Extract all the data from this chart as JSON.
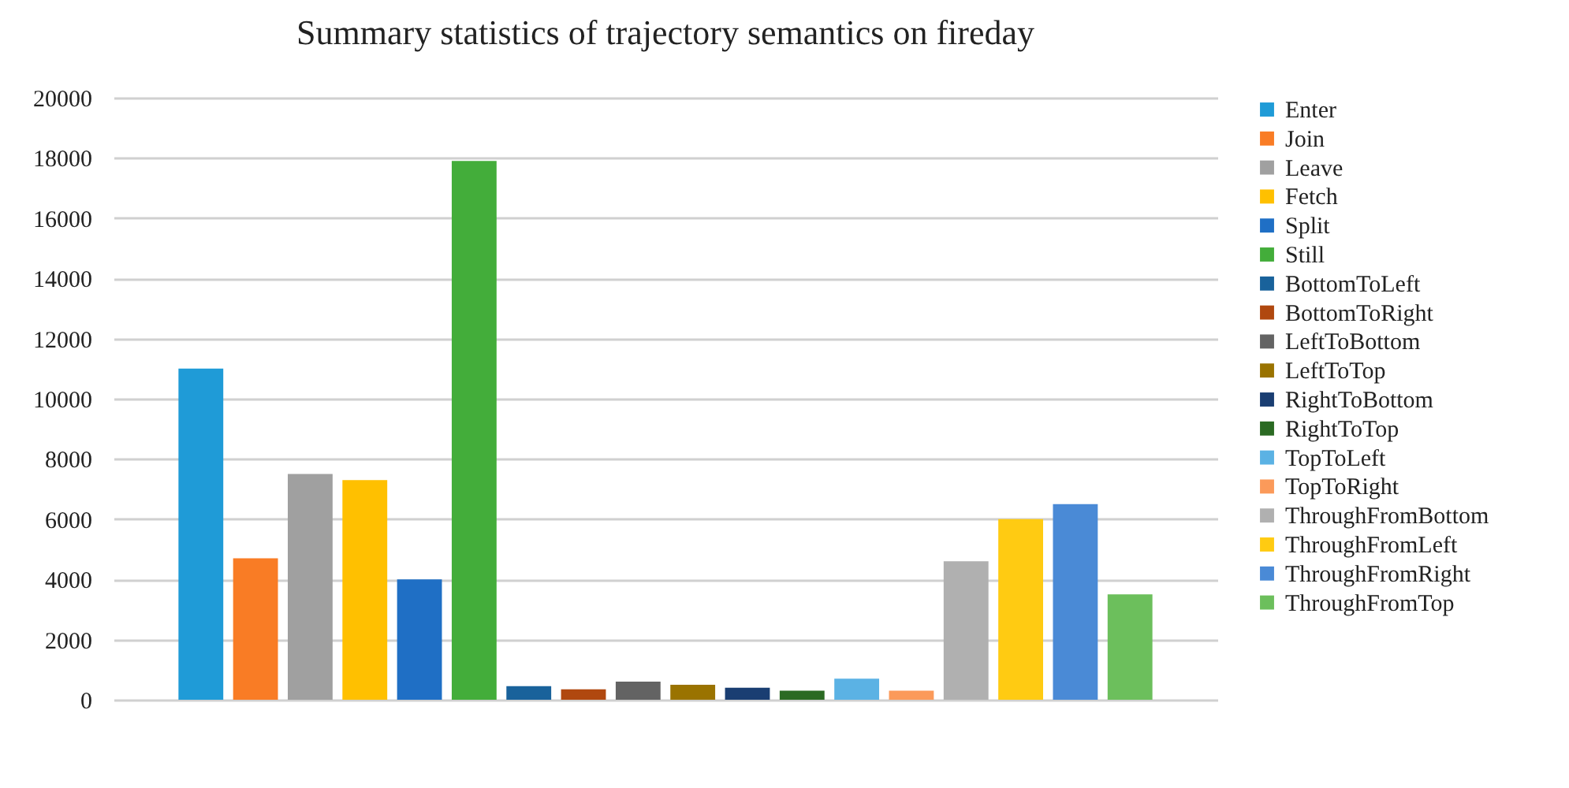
{
  "chart_data": {
    "type": "bar",
    "title": "Summary  statistics of trajectory  semantics on fireday",
    "categories": [
      null
    ],
    "series": [
      {
        "name": "Enter",
        "color": "#1f9bd7",
        "values": [
          11000
        ]
      },
      {
        "name": "Join",
        "color": "#f97c25",
        "values": [
          4700
        ]
      },
      {
        "name": "Leave",
        "color": "#a0a0a0",
        "values": [
          7500
        ]
      },
      {
        "name": "Fetch",
        "color": "#ffc000",
        "values": [
          7300
        ]
      },
      {
        "name": "Split",
        "color": "#1f6fc5",
        "values": [
          4000
        ]
      },
      {
        "name": "Still",
        "color": "#43ad3a",
        "values": [
          17900
        ]
      },
      {
        "name": "BottomToLeft",
        "color": "#19629b",
        "values": [
          450
        ]
      },
      {
        "name": "BottomToRight",
        "color": "#b0480f",
        "values": [
          350
        ]
      },
      {
        "name": "LeftToBottom",
        "color": "#636363",
        "values": [
          600
        ]
      },
      {
        "name": "LeftToTop",
        "color": "#9a7300",
        "values": [
          500
        ]
      },
      {
        "name": "RightToBottom",
        "color": "#1a3e72",
        "values": [
          400
        ]
      },
      {
        "name": "RightToTop",
        "color": "#2b6a23",
        "values": [
          300
        ]
      },
      {
        "name": "TopToLeft",
        "color": "#5bb2e4",
        "values": [
          700
        ]
      },
      {
        "name": "TopToRight",
        "color": "#fb9a5a",
        "values": [
          300
        ]
      },
      {
        "name": "ThroughFromBottom",
        "color": "#b0b0b0",
        "values": [
          4600
        ]
      },
      {
        "name": "ThroughFromLeft",
        "color": "#ffcb12",
        "values": [
          6000
        ]
      },
      {
        "name": "ThroughFromRight",
        "color": "#4a8ad6",
        "values": [
          6500
        ]
      },
      {
        "name": "ThroughFromTop",
        "color": "#6cbf5c",
        "values": [
          3500
        ]
      }
    ],
    "ylim": [
      0,
      20000
    ],
    "yticks": [
      0,
      2000,
      4000,
      6000,
      8000,
      10000,
      12000,
      14000,
      16000,
      18000,
      20000
    ],
    "grid": "y",
    "legend": "right",
    "tick_labels": "y"
  }
}
